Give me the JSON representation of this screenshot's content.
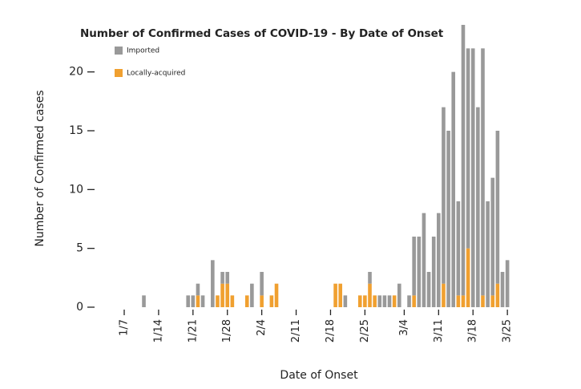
{
  "chart_data": {
    "type": "stacked_bar",
    "title": "Number of Confirmed Cases of COVID-19 - By Date of Onset",
    "x_label": "Date of Onset",
    "y_label": "Number of Confirmed cases",
    "categories": [
      "1/7",
      null,
      null,
      null,
      null,
      null,
      null,
      "1/14",
      null,
      null,
      null,
      null,
      null,
      null,
      "1/21",
      null,
      null,
      null,
      null,
      null,
      null,
      "1/28",
      null,
      null,
      null,
      null,
      null,
      null,
      "2/4",
      null,
      null,
      null,
      null,
      null,
      null,
      "2/11",
      null,
      null,
      null,
      null,
      null,
      null,
      "2/18",
      null,
      null,
      null,
      null,
      null,
      null,
      "2/25",
      null,
      null,
      null,
      null,
      null,
      null,
      null,
      "3/4",
      null,
      null,
      null,
      null,
      null,
      null,
      "3/11",
      null,
      null,
      null,
      null,
      null,
      null,
      "3/18",
      null,
      null,
      null,
      null,
      null,
      null,
      "3/25"
    ],
    "series": [
      {
        "name": "Locally-acquired",
        "color": "#f0a030",
        "values": [
          0,
          0,
          0,
          0,
          0,
          0,
          0,
          0,
          0,
          0,
          0,
          0,
          0,
          0,
          0,
          1,
          0,
          0,
          0,
          1,
          2,
          2,
          1,
          0,
          0,
          1,
          0,
          0,
          1,
          0,
          1,
          2,
          0,
          0,
          0,
          0,
          0,
          0,
          0,
          0,
          0,
          0,
          0,
          2,
          2,
          0,
          0,
          0,
          1,
          1,
          2,
          1,
          0,
          0,
          0,
          1,
          0,
          0,
          0,
          1,
          0,
          0,
          0,
          0,
          0,
          2,
          0,
          0,
          1,
          1,
          5,
          0,
          0,
          1,
          0,
          1,
          2,
          0,
          0
        ]
      },
      {
        "name": "Imported",
        "color": "#999999",
        "values": [
          0,
          0,
          0,
          0,
          1,
          0,
          0,
          0,
          0,
          0,
          0,
          0,
          0,
          1,
          1,
          1,
          1,
          0,
          4,
          0,
          1,
          1,
          0,
          0,
          0,
          0,
          2,
          0,
          2,
          0,
          0,
          0,
          0,
          0,
          0,
          0,
          0,
          0,
          0,
          0,
          0,
          0,
          0,
          0,
          0,
          1,
          0,
          0,
          0,
          0,
          1,
          0,
          1,
          1,
          1,
          0,
          2,
          0,
          1,
          5,
          6,
          8,
          3,
          6,
          8,
          15,
          15,
          20,
          8,
          23,
          17,
          22,
          17,
          21,
          9,
          10,
          13,
          3,
          4
        ]
      }
    ],
    "ylim": [
      0,
      24
    ],
    "yticks": [
      0,
      5,
      10,
      15,
      20
    ],
    "grid": false
  }
}
